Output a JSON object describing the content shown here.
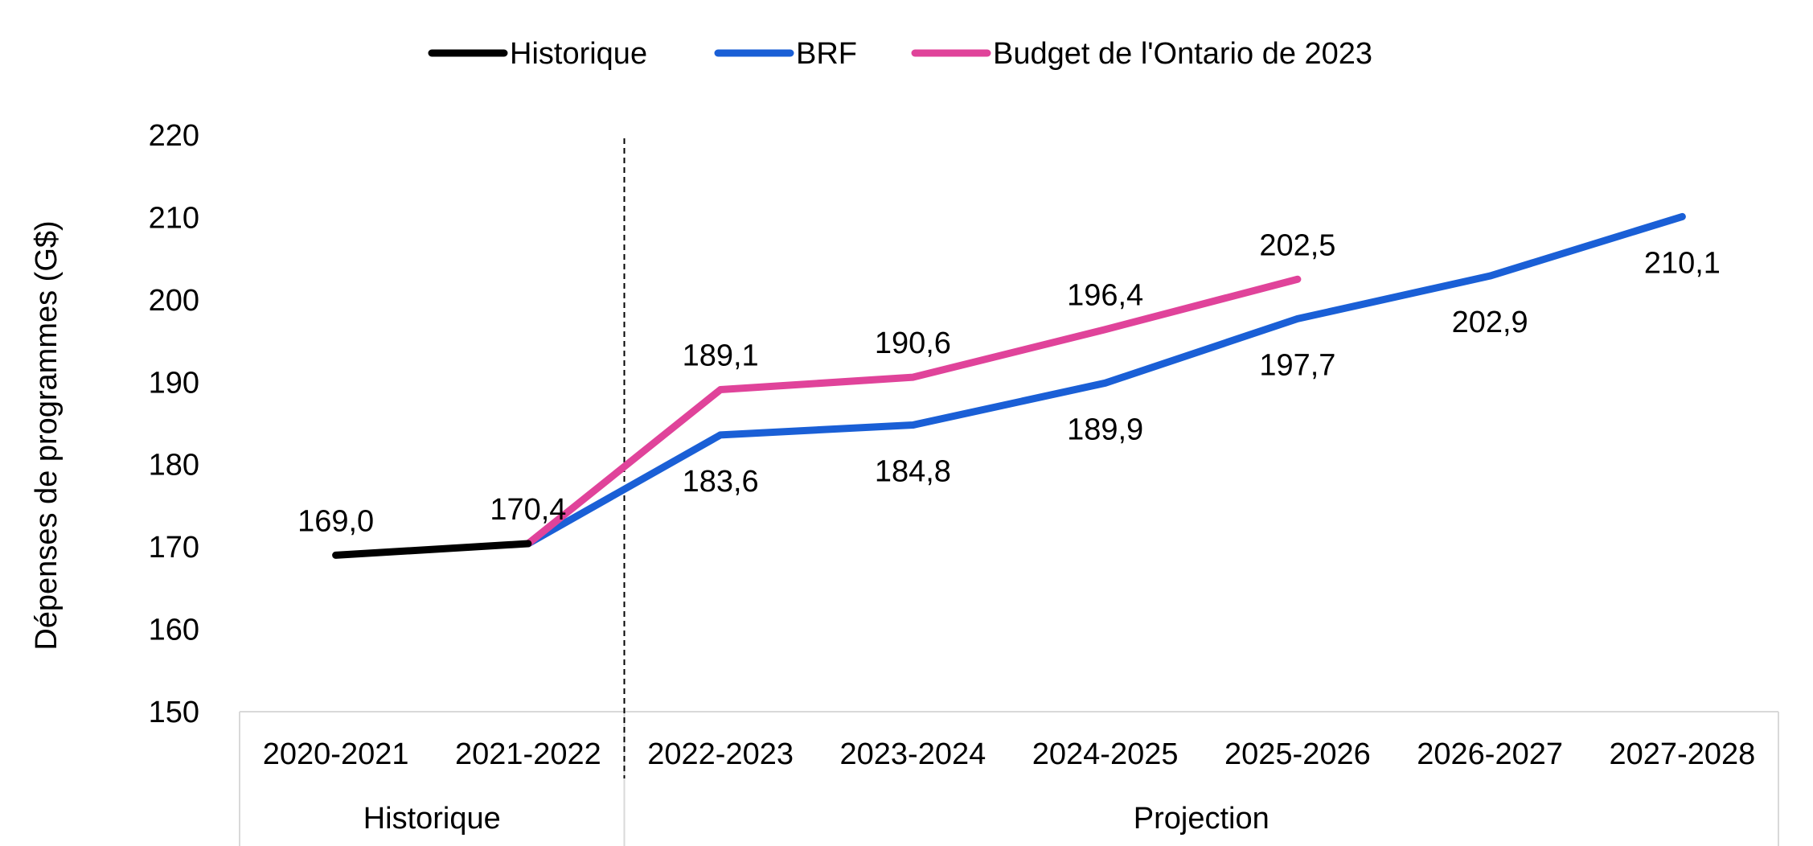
{
  "chart_data": {
    "type": "line",
    "title": "",
    "xlabel": "",
    "ylabel": "Dépenses de programmes (G$)",
    "ylim": [
      150,
      220
    ],
    "yticks": [
      150,
      160,
      170,
      180,
      190,
      200,
      210,
      220
    ],
    "grid": false,
    "legend_position": "top",
    "categories": [
      "2020-2021",
      "2021-2022",
      "2022-2023",
      "2023-2024",
      "2024-2025",
      "2025-2026",
      "2026-2027",
      "2027-2028"
    ],
    "category_groups": [
      {
        "label": "Historique",
        "span": [
          0,
          1
        ]
      },
      {
        "label": "Projection",
        "span": [
          2,
          7
        ]
      }
    ],
    "series": [
      {
        "name": "Historique",
        "color": "#000000",
        "values": [
          169.0,
          170.4,
          null,
          null,
          null,
          null,
          null,
          null
        ],
        "labels": [
          "169,0",
          "170,4",
          null,
          null,
          null,
          null,
          null,
          null
        ],
        "label_position": "above"
      },
      {
        "name": "BRF",
        "color": "#1a5fd6",
        "values": [
          null,
          170.4,
          183.6,
          184.8,
          189.9,
          197.7,
          202.9,
          210.1
        ],
        "labels": [
          null,
          null,
          "183,6",
          "184,8",
          "189,9",
          "197,7",
          "202,9",
          "210,1"
        ],
        "label_position": "below"
      },
      {
        "name": "Budget de l'Ontario de 2023",
        "color": "#e0439a",
        "values": [
          null,
          170.4,
          189.1,
          190.6,
          196.4,
          202.5,
          null,
          null
        ],
        "labels": [
          null,
          null,
          "189,1",
          "190,6",
          "196,4",
          "202,5",
          null,
          null
        ],
        "label_position": "above"
      }
    ]
  }
}
